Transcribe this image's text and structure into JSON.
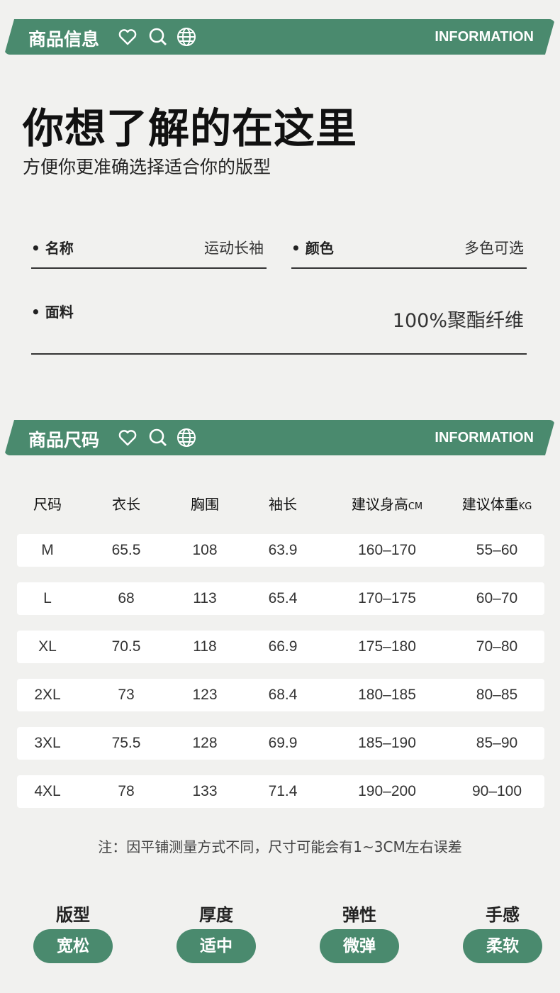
{
  "section1": {
    "title": "商品信息",
    "en": "INFORMATION"
  },
  "headline": "你想了解的在这里",
  "subtitle": "方便你更准确选择适合你的版型",
  "fields": [
    {
      "k": "• 名称",
      "v": "运动长袖"
    },
    {
      "k": "• 颜色",
      "v": "多色可选"
    },
    {
      "k": "• 面料",
      "v": "100%聚酯纤维"
    }
  ],
  "section2": {
    "title": "商品尺码",
    "en": "INFORMATION"
  },
  "table": {
    "headers": [
      "尺码",
      "衣长",
      "胸围",
      "袖长",
      "建议身高",
      "建议体重"
    ],
    "units": [
      "",
      "",
      "",
      "",
      "CM",
      "KG"
    ],
    "rows": [
      [
        "M",
        "65.5",
        "108",
        "63.9",
        "160–170",
        "55–60"
      ],
      [
        "L",
        "68",
        "113",
        "65.4",
        "170–175",
        "60–70"
      ],
      [
        "XL",
        "70.5",
        "118",
        "66.9",
        "175–180",
        "70–80"
      ],
      [
        "2XL",
        "73",
        "123",
        "68.4",
        "180–185",
        "80–85"
      ],
      [
        "3XL",
        "75.5",
        "128",
        "69.9",
        "185–190",
        "85–90"
      ],
      [
        "4XL",
        "78",
        "133",
        "71.4",
        "190–200",
        "90–100"
      ]
    ]
  },
  "note": "注：因平铺测量方式不同，尺寸可能会有1~3CM左右误差",
  "attributes": [
    {
      "k": "版型",
      "v": "宽松"
    },
    {
      "k": "厚度",
      "v": "适中"
    },
    {
      "k": "弹性",
      "v": "微弹"
    },
    {
      "k": "手感",
      "v": "柔软"
    }
  ],
  "colors": {
    "green": "#4a8a6e",
    "bg": "#f1f1ef"
  },
  "icons": [
    "heart-icon",
    "search-icon",
    "globe-icon"
  ]
}
